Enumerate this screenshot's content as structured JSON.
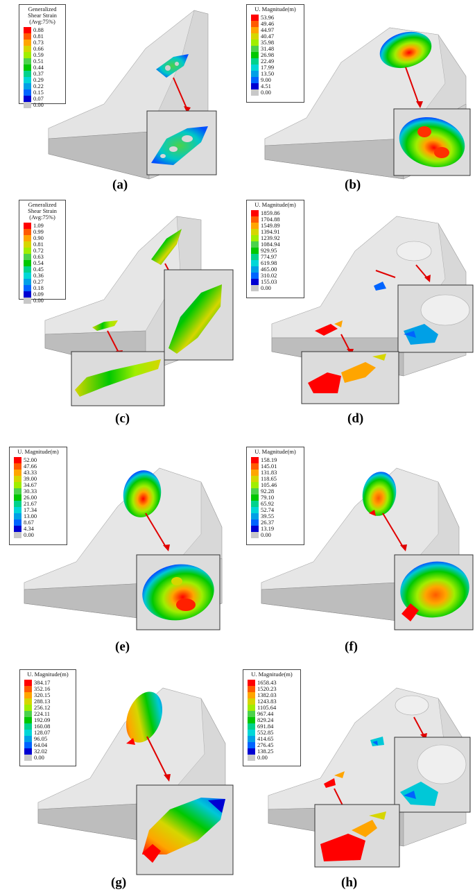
{
  "colors": [
    "#ff0000",
    "#ff5a00",
    "#ffa500",
    "#d6d600",
    "#a0ee00",
    "#4bd24b",
    "#00c800",
    "#00d28c",
    "#00d7d7",
    "#00a0e6",
    "#0064ff",
    "#0000d2",
    "#c8c8c8"
  ],
  "panels": [
    {
      "id": "a",
      "caption": "(a)",
      "title": [
        "Generalized",
        "Shear Strain",
        "(Avg:75%)"
      ],
      "values": [
        "0.88",
        "0.81",
        "0.73",
        "0.66",
        "0.59",
        "0.51",
        "0.44",
        "0.37",
        "0.29",
        "0.22",
        "0.15",
        "0.07",
        "0.00"
      ]
    },
    {
      "id": "b",
      "caption": "(b)",
      "title": [
        "U. Magnitude(m)"
      ],
      "values": [
        "53.96",
        "49.46",
        "44.97",
        "40.47",
        "35.98",
        "31.48",
        "26.98",
        "22.49",
        "17.99",
        "13.50",
        "9.00",
        "4.51",
        "0.00"
      ]
    },
    {
      "id": "c",
      "caption": "(c)",
      "title": [
        "Generalized",
        "Shear Strain",
        "(Avg:75%)"
      ],
      "values": [
        "1.09",
        "0.99",
        "0.90",
        "0.81",
        "0.72",
        "0.63",
        "0.54",
        "0.45",
        "0.36",
        "0.27",
        "0.18",
        "0.09",
        "0.00"
      ]
    },
    {
      "id": "d",
      "caption": "(d)",
      "title": [
        "U. Magnitude(m)"
      ],
      "values": [
        "1859.86",
        "1704.88",
        "1549.89",
        "1394.91",
        "1239.92",
        "1084.94",
        "929.95",
        "774.97",
        "619.98",
        "465.00",
        "310.02",
        "155.03",
        "0.00"
      ]
    },
    {
      "id": "e",
      "caption": "(e)",
      "title": [
        "U. Magnitude(m)"
      ],
      "values": [
        "52.00",
        "47.66",
        "43.33",
        "39.00",
        "34.67",
        "30.33",
        "26.00",
        "21.67",
        "17.34",
        "13.00",
        "8.67",
        "4.34",
        "0.00"
      ]
    },
    {
      "id": "f",
      "caption": "(f)",
      "title": [
        "U. Magnitude(m)"
      ],
      "values": [
        "158.19",
        "145.01",
        "131.83",
        "118.65",
        "105.46",
        "92.28",
        "79.10",
        "65.92",
        "52.74",
        "39.55",
        "26.37",
        "13.19",
        "0.00"
      ]
    },
    {
      "id": "g",
      "caption": "(g)",
      "title": [
        "U. Magnitude(m)"
      ],
      "values": [
        "384.17",
        "352.16",
        "320.15",
        "288.13",
        "256.12",
        "224.11",
        "192.09",
        "160.08",
        "128.07",
        "96.05",
        "64.04",
        "32.02",
        "0.00"
      ]
    },
    {
      "id": "h",
      "caption": "(h)",
      "title": [
        "U. Magnitude(m)"
      ],
      "values": [
        "1658.43",
        "1520.23",
        "1382.03",
        "1243.83",
        "1105.64",
        "967.44",
        "829.24",
        "691.84",
        "552.85",
        "414.65",
        "276.45",
        "138.25",
        "0.00"
      ]
    }
  ]
}
